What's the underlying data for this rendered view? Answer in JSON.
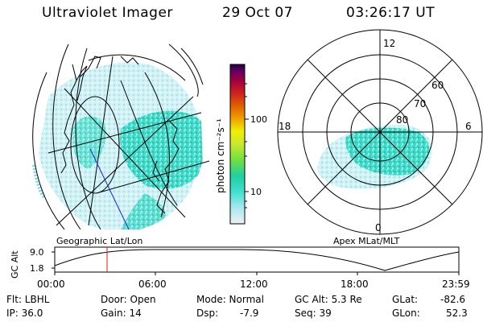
{
  "header": {
    "instrument": "Ultraviolet Imager",
    "date": "29 Oct 07",
    "time": "03:26:17 UT"
  },
  "left_panel": {
    "label": "Geographic Lat/Lon"
  },
  "right_panel": {
    "label": "Apex MLat/MLT",
    "mlt_labels": {
      "top": "12",
      "left": "18",
      "right": "6",
      "bottom": "0"
    },
    "lat_labels": [
      "60",
      "70",
      "80"
    ]
  },
  "colorbar": {
    "unit_label": "photon cm⁻²s⁻¹",
    "ticks": [
      "100",
      "10"
    ],
    "scale": "log",
    "colors": [
      "#f0f0f0",
      "#a0e8f0",
      "#40e0d0",
      "#20d0a0",
      "#70e040",
      "#c8e830",
      "#f0f000",
      "#f0a000",
      "#e06000",
      "#d02020",
      "#a00040",
      "#600060",
      "#200040"
    ]
  },
  "altitude_plot": {
    "ylabel": "GC Alt",
    "yticks": [
      "9.0",
      "1.8"
    ],
    "xticks": [
      "00:00",
      "06:00",
      "12:00",
      "18:00",
      "23:59"
    ],
    "current_time_marker": "03:26",
    "marker_color": "#d02020"
  },
  "footer": {
    "filter": "Flt: LBHL",
    "ip": "IP: 36.0",
    "door": "Door: Open",
    "gain": "Gain: 14",
    "mode": "Mode: Normal",
    "dsp_label": "Dsp:",
    "dsp_value": "-7.9",
    "gc_alt": "GC Alt: 5.3 Re",
    "seq": "Seq: 39",
    "glat_label": "GLat:",
    "glat_value": "-82.6",
    "glon_label": "GLon:",
    "glon_value": "52.3"
  }
}
